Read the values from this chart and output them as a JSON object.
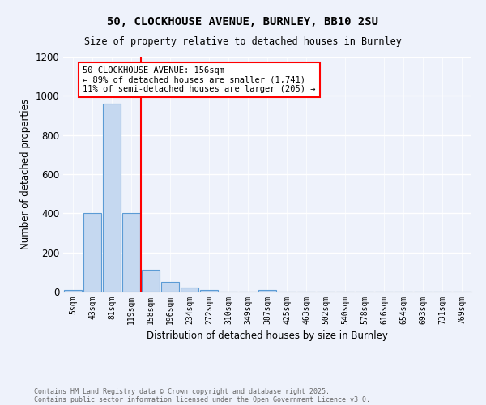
{
  "title1": "50, CLOCKHOUSE AVENUE, BURNLEY, BB10 2SU",
  "title2": "Size of property relative to detached houses in Burnley",
  "xlabel": "Distribution of detached houses by size in Burnley",
  "ylabel": "Number of detached properties",
  "categories": [
    "5sqm",
    "43sqm",
    "81sqm",
    "119sqm",
    "158sqm",
    "196sqm",
    "234sqm",
    "272sqm",
    "310sqm",
    "349sqm",
    "387sqm",
    "425sqm",
    "463sqm",
    "502sqm",
    "540sqm",
    "578sqm",
    "616sqm",
    "654sqm",
    "693sqm",
    "731sqm",
    "769sqm"
  ],
  "values": [
    10,
    400,
    960,
    400,
    110,
    50,
    20,
    10,
    0,
    0,
    10,
    0,
    0,
    0,
    0,
    0,
    0,
    0,
    0,
    0,
    0
  ],
  "bar_color": "#c5d8f0",
  "bar_edge_color": "#5b9bd5",
  "red_line_index": 4,
  "annotation_title": "50 CLOCKHOUSE AVENUE: 156sqm",
  "annotation_line1": "← 89% of detached houses are smaller (1,741)",
  "annotation_line2": "11% of semi-detached houses are larger (205) →",
  "ylim": [
    0,
    1200
  ],
  "yticks": [
    0,
    200,
    400,
    600,
    800,
    1000,
    1200
  ],
  "footer1": "Contains HM Land Registry data © Crown copyright and database right 2025.",
  "footer2": "Contains public sector information licensed under the Open Government Licence v3.0.",
  "bg_color": "#eef2fb",
  "plot_bg_color": "#eef2fb"
}
